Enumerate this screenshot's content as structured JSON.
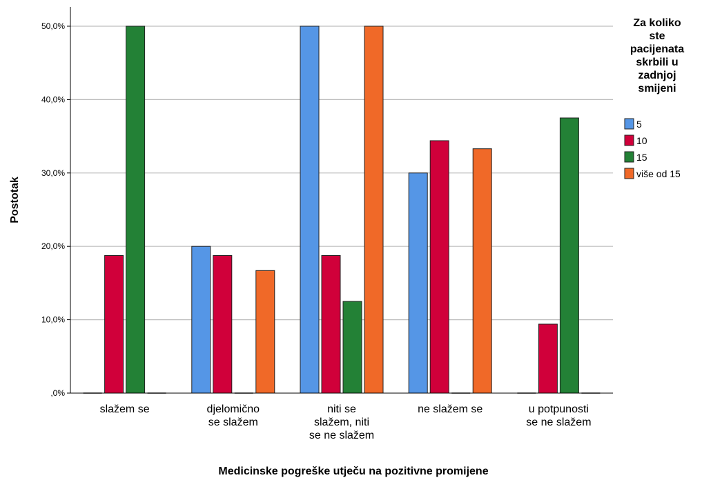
{
  "chart_data": {
    "type": "bar",
    "xlabel": "Medicinske pogreške utječu na pozitivne promijene",
    "ylabel": "Postotak",
    "ylim": [
      0,
      50
    ],
    "yticks": [
      ",0%",
      "10,0%",
      "20,0%",
      "30,0%",
      "40,0%",
      "50,0%"
    ],
    "grid": true,
    "legend_position": "right",
    "categories": [
      [
        "slažem se"
      ],
      [
        "djelomično",
        "se slažem"
      ],
      [
        "niti se",
        "slažem, niti",
        "se ne slažem"
      ],
      [
        "ne slažem se"
      ],
      [
        "u potpunosti",
        "se ne slažem"
      ]
    ],
    "legend_title": [
      "Za koliko",
      "ste",
      "pacijenata",
      "skrbili u",
      "zadnjoj",
      "smijeni"
    ],
    "series": [
      {
        "name": "5",
        "color": "#5596e6",
        "values": [
          0,
          20,
          50,
          30,
          0
        ]
      },
      {
        "name": "10",
        "color": "#d0003a",
        "values": [
          18.75,
          18.75,
          18.75,
          34.4,
          9.4
        ]
      },
      {
        "name": "15",
        "color": "#238136",
        "values": [
          50,
          0,
          12.5,
          0,
          37.5
        ]
      },
      {
        "name": "više od 15",
        "color": "#f06928",
        "values": [
          0,
          16.7,
          50,
          33.3,
          0
        ]
      }
    ]
  }
}
